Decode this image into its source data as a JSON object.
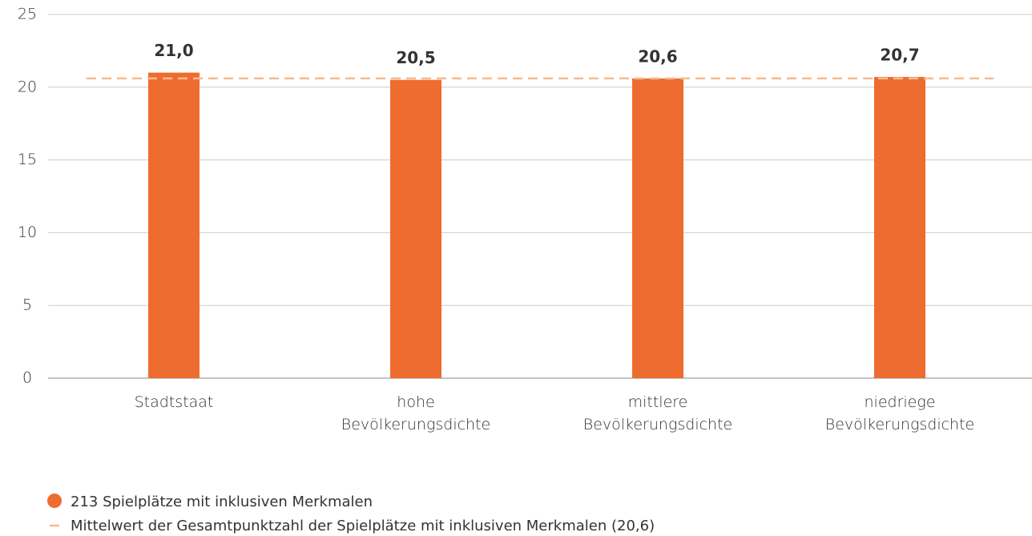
{
  "chart_data": {
    "type": "bar",
    "categories": [
      "Stadtstaat",
      "hohe Bevölkerungsdichte",
      "mittlere Bevölkerungsdichte",
      "niedriege Bevölkerungsdichte"
    ],
    "series": [
      {
        "name": "213 Spielplätze mit inklusiven Merkmalen",
        "color": "#ee6c2f",
        "values": [
          21.0,
          20.5,
          20.6,
          20.7
        ],
        "value_labels": [
          "21,0",
          "20,5",
          "20,6",
          "20,7"
        ]
      }
    ],
    "mean": {
      "name": "Mittelwert der Gesamtpunktzahl der Spielplätze mit inklusiven Merkmalen (20,6)",
      "value": 20.6,
      "color": "#f5bb8f"
    },
    "ylim": [
      0,
      25
    ],
    "yticks": [
      0,
      5,
      10,
      15,
      20,
      25
    ],
    "grid": true
  }
}
